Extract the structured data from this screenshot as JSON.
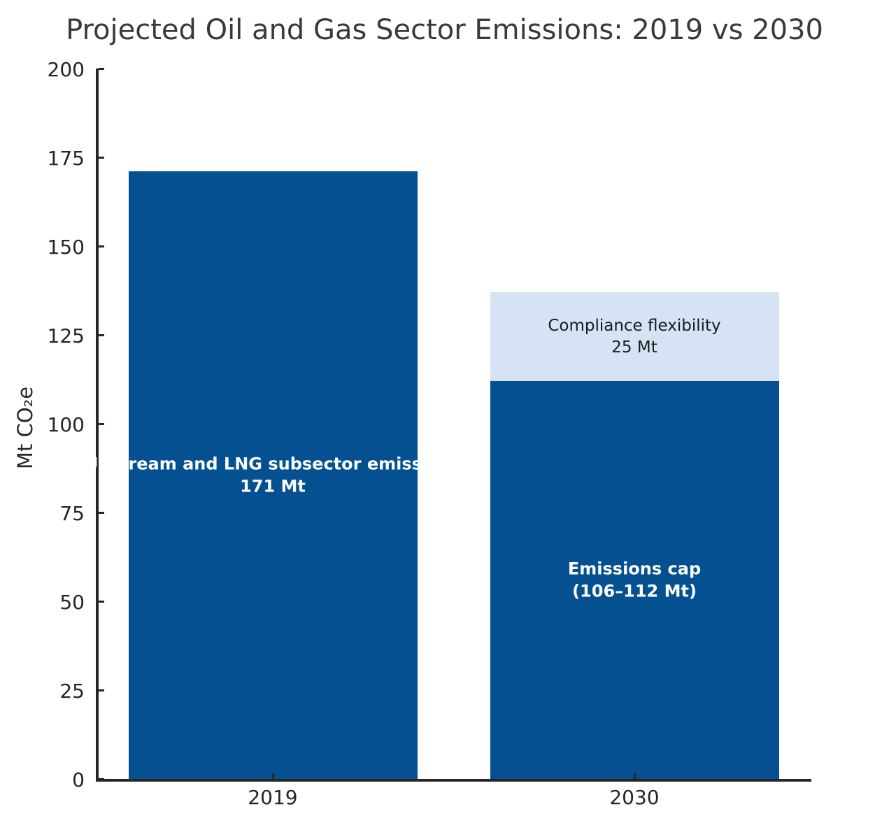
{
  "chart_data": {
    "type": "bar",
    "title": "Projected Oil and Gas Sector Emissions: 2019 vs 2030",
    "ylabel": "Mt CO₂e",
    "xlabel": "",
    "ylim": [
      0,
      200
    ],
    "yticks": [
      0,
      25,
      50,
      75,
      100,
      125,
      150,
      175,
      200
    ],
    "categories": [
      "2019",
      "2030"
    ],
    "grid": false,
    "legend": false,
    "colors": {
      "dark_blue": "#045090",
      "light_blue": "#d6e3f4",
      "axis": "#262626",
      "title_text": "#3a3a3a",
      "label_on_dark": "#ffffff",
      "label_on_light": "#1a1a1a"
    },
    "bars": [
      {
        "category": "2019",
        "total": 171,
        "segments": [
          {
            "name": "Upstream and LNG subsector emissions",
            "value": 171,
            "color_key": "dark_blue",
            "label_lines": [
              "Upstream and LNG subsector emissions",
              "171 Mt"
            ],
            "label_color_key": "label_on_dark",
            "label_weight": "bold"
          }
        ]
      },
      {
        "category": "2030",
        "total": 137,
        "segments": [
          {
            "name": "Emissions cap",
            "value": 112,
            "color_key": "dark_blue",
            "label_lines": [
              "Emissions cap",
              "(106–112 Mt)"
            ],
            "label_color_key": "label_on_dark",
            "label_weight": "bold"
          },
          {
            "name": "Compliance flexibility",
            "value": 25,
            "color_key": "light_blue",
            "label_lines": [
              "Compliance flexibility",
              "25 Mt"
            ],
            "label_color_key": "label_on_light",
            "label_weight": "normal"
          }
        ]
      }
    ]
  }
}
